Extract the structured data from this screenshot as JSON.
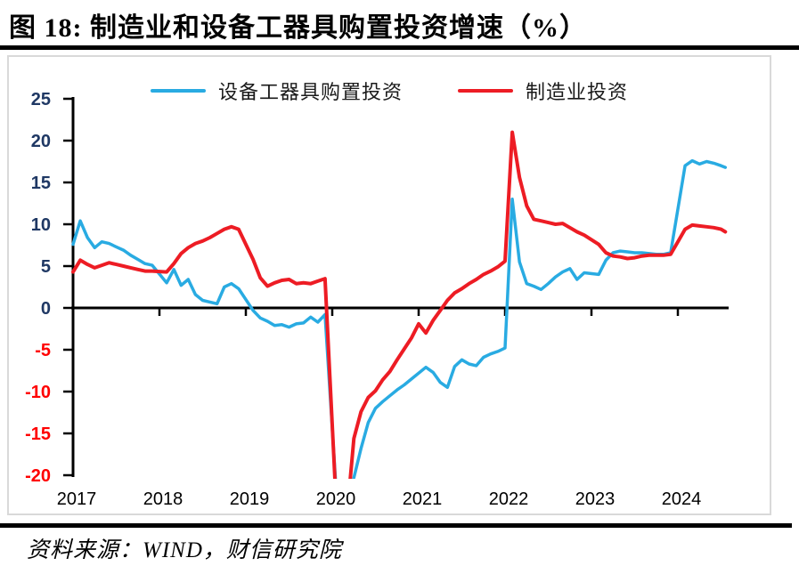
{
  "page": {
    "title": "图 18:  制造业和设备工器具购置投资增速（%）",
    "source": "资料来源：WIND，财信研究院"
  },
  "legend": {
    "items": [
      {
        "key": "equipment",
        "label": "设备工器具购置投资",
        "color": "#29ABE2"
      },
      {
        "key": "manufacturing",
        "label": "制造业投资",
        "color": "#ED1C24"
      }
    ]
  },
  "chart_data": {
    "type": "line",
    "title": "制造业和设备工器具购置投资增速（%）",
    "ylabel": "",
    "xlabel": "",
    "ylim": [
      -20,
      25
    ],
    "xlim": [
      2017.0,
      2024.6
    ],
    "grid": false,
    "legend_position": "top-center",
    "y_ticks": [
      25,
      20,
      15,
      10,
      5,
      0,
      -5,
      -10,
      -15,
      -20
    ],
    "x_ticks": [
      2017,
      2018,
      2019,
      2020,
      2021,
      2022,
      2023,
      2024
    ],
    "colors": {
      "positive_label": "#1F3864",
      "negative_label": "#FF0000",
      "year_label": "#000000",
      "axis": "#000000"
    },
    "series": [
      {
        "key": "equipment",
        "name": "设备工器具购置投资",
        "color": "#29ABE2",
        "points": [
          [
            2017.0,
            7.6
          ],
          [
            2017.083,
            10.4
          ],
          [
            2017.167,
            8.4
          ],
          [
            2017.25,
            7.2
          ],
          [
            2017.333,
            7.9
          ],
          [
            2017.417,
            7.7
          ],
          [
            2017.5,
            7.3
          ],
          [
            2017.583,
            6.9
          ],
          [
            2017.667,
            6.3
          ],
          [
            2017.75,
            5.8
          ],
          [
            2017.833,
            5.3
          ],
          [
            2017.917,
            5.1
          ],
          [
            2018.083,
            3.0
          ],
          [
            2018.167,
            4.6
          ],
          [
            2018.25,
            2.7
          ],
          [
            2018.333,
            3.4
          ],
          [
            2018.417,
            1.6
          ],
          [
            2018.5,
            0.9
          ],
          [
            2018.583,
            0.7
          ],
          [
            2018.667,
            0.5
          ],
          [
            2018.75,
            2.5
          ],
          [
            2018.833,
            2.9
          ],
          [
            2018.917,
            2.3
          ],
          [
            2019.083,
            -0.3
          ],
          [
            2019.167,
            -1.2
          ],
          [
            2019.25,
            -1.6
          ],
          [
            2019.333,
            -2.1
          ],
          [
            2019.417,
            -2.0
          ],
          [
            2019.5,
            -2.3
          ],
          [
            2019.583,
            -1.9
          ],
          [
            2019.667,
            -1.8
          ],
          [
            2019.75,
            -1.1
          ],
          [
            2019.833,
            -1.7
          ],
          [
            2019.917,
            -0.8
          ],
          [
            2020.083,
            -28.0
          ],
          [
            2020.167,
            -23.5
          ],
          [
            2020.25,
            -20.3
          ],
          [
            2020.333,
            -16.8
          ],
          [
            2020.417,
            -13.7
          ],
          [
            2020.5,
            -12.0
          ],
          [
            2020.583,
            -11.2
          ],
          [
            2020.667,
            -10.5
          ],
          [
            2020.75,
            -9.8
          ],
          [
            2020.833,
            -9.2
          ],
          [
            2020.917,
            -8.5
          ],
          [
            2021.083,
            -7.1
          ],
          [
            2021.167,
            -7.7
          ],
          [
            2021.25,
            -8.9
          ],
          [
            2021.333,
            -9.5
          ],
          [
            2021.417,
            -7.0
          ],
          [
            2021.5,
            -6.2
          ],
          [
            2021.583,
            -6.7
          ],
          [
            2021.667,
            -6.9
          ],
          [
            2021.75,
            -5.9
          ],
          [
            2021.833,
            -5.5
          ],
          [
            2021.917,
            -5.2
          ],
          [
            2022.0,
            -4.8
          ],
          [
            2022.083,
            13.0
          ],
          [
            2022.167,
            5.5
          ],
          [
            2022.25,
            2.9
          ],
          [
            2022.333,
            2.6
          ],
          [
            2022.417,
            2.2
          ],
          [
            2022.5,
            2.9
          ],
          [
            2022.583,
            3.7
          ],
          [
            2022.667,
            4.3
          ],
          [
            2022.75,
            4.7
          ],
          [
            2022.833,
            3.4
          ],
          [
            2022.917,
            4.2
          ],
          [
            2023.083,
            4.0
          ],
          [
            2023.167,
            5.7
          ],
          [
            2023.25,
            6.6
          ],
          [
            2023.333,
            6.8
          ],
          [
            2023.417,
            6.7
          ],
          [
            2023.5,
            6.6
          ],
          [
            2023.583,
            6.6
          ],
          [
            2023.667,
            6.5
          ],
          [
            2023.75,
            6.4
          ],
          [
            2023.833,
            6.4
          ],
          [
            2023.917,
            6.6
          ],
          [
            2024.083,
            17.0
          ],
          [
            2024.167,
            17.6
          ],
          [
            2024.25,
            17.2
          ],
          [
            2024.333,
            17.5
          ],
          [
            2024.417,
            17.3
          ],
          [
            2024.5,
            17.0
          ],
          [
            2024.55,
            16.8
          ]
        ]
      },
      {
        "key": "manufacturing",
        "name": "制造业投资",
        "color": "#ED1C24",
        "points": [
          [
            2017.0,
            4.3
          ],
          [
            2017.083,
            5.7
          ],
          [
            2017.167,
            5.2
          ],
          [
            2017.25,
            4.8
          ],
          [
            2017.333,
            5.1
          ],
          [
            2017.417,
            5.4
          ],
          [
            2017.5,
            5.2
          ],
          [
            2017.583,
            5.0
          ],
          [
            2017.667,
            4.8
          ],
          [
            2017.75,
            4.6
          ],
          [
            2017.833,
            4.4
          ],
          [
            2017.917,
            4.4
          ],
          [
            2018.083,
            4.3
          ],
          [
            2018.167,
            5.3
          ],
          [
            2018.25,
            6.5
          ],
          [
            2018.333,
            7.2
          ],
          [
            2018.417,
            7.7
          ],
          [
            2018.5,
            8.0
          ],
          [
            2018.583,
            8.4
          ],
          [
            2018.667,
            8.9
          ],
          [
            2018.75,
            9.4
          ],
          [
            2018.833,
            9.7
          ],
          [
            2018.917,
            9.4
          ],
          [
            2019.083,
            5.8
          ],
          [
            2019.167,
            3.6
          ],
          [
            2019.25,
            2.6
          ],
          [
            2019.333,
            3.0
          ],
          [
            2019.417,
            3.3
          ],
          [
            2019.5,
            3.4
          ],
          [
            2019.583,
            2.9
          ],
          [
            2019.667,
            3.0
          ],
          [
            2019.75,
            2.9
          ],
          [
            2019.833,
            3.2
          ],
          [
            2019.917,
            3.5
          ],
          [
            2020.083,
            -31.5
          ],
          [
            2020.167,
            -25.2
          ],
          [
            2020.25,
            -15.6
          ],
          [
            2020.333,
            -12.4
          ],
          [
            2020.417,
            -10.7
          ],
          [
            2020.5,
            -9.9
          ],
          [
            2020.583,
            -8.6
          ],
          [
            2020.667,
            -7.6
          ],
          [
            2020.75,
            -6.2
          ],
          [
            2020.833,
            -4.9
          ],
          [
            2020.917,
            -3.6
          ],
          [
            2021.0,
            -1.9
          ],
          [
            2021.083,
            -3.0
          ],
          [
            2021.167,
            -1.5
          ],
          [
            2021.25,
            -0.3
          ],
          [
            2021.333,
            0.9
          ],
          [
            2021.417,
            1.8
          ],
          [
            2021.5,
            2.3
          ],
          [
            2021.583,
            2.9
          ],
          [
            2021.667,
            3.4
          ],
          [
            2021.75,
            4.0
          ],
          [
            2021.833,
            4.4
          ],
          [
            2021.917,
            4.9
          ],
          [
            2022.0,
            5.6
          ],
          [
            2022.083,
            21.0
          ],
          [
            2022.167,
            15.6
          ],
          [
            2022.25,
            12.2
          ],
          [
            2022.333,
            10.6
          ],
          [
            2022.417,
            10.4
          ],
          [
            2022.5,
            10.2
          ],
          [
            2022.583,
            10.0
          ],
          [
            2022.667,
            10.1
          ],
          [
            2022.75,
            9.6
          ],
          [
            2022.833,
            9.1
          ],
          [
            2022.917,
            8.7
          ],
          [
            2023.083,
            7.6
          ],
          [
            2023.167,
            6.6
          ],
          [
            2023.25,
            6.2
          ],
          [
            2023.333,
            6.1
          ],
          [
            2023.417,
            5.9
          ],
          [
            2023.5,
            6.0
          ],
          [
            2023.583,
            6.2
          ],
          [
            2023.667,
            6.3
          ],
          [
            2023.75,
            6.3
          ],
          [
            2023.833,
            6.3
          ],
          [
            2023.917,
            6.4
          ],
          [
            2024.083,
            9.4
          ],
          [
            2024.167,
            9.9
          ],
          [
            2024.25,
            9.8
          ],
          [
            2024.333,
            9.7
          ],
          [
            2024.417,
            9.6
          ],
          [
            2024.5,
            9.4
          ],
          [
            2024.55,
            9.1
          ]
        ]
      }
    ]
  }
}
